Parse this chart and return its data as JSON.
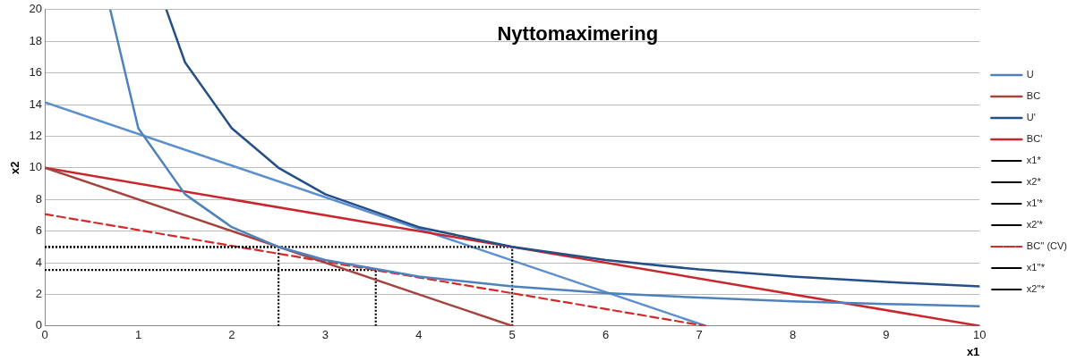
{
  "chart_data": {
    "type": "line",
    "title": "Nyttomaximering",
    "xlabel": "x1",
    "ylabel": "x2",
    "xlim": [
      0,
      10
    ],
    "xticks": [
      0,
      1,
      2,
      3,
      4,
      5,
      6,
      7,
      8,
      9,
      10
    ],
    "ylim": [
      0,
      20
    ],
    "yticks": [
      0,
      2,
      4,
      6,
      8,
      10,
      12,
      14,
      16,
      18,
      20
    ],
    "grid": "y",
    "legend": "right",
    "marker": "none",
    "series": [
      {
        "name": "U",
        "color": "#4f81bd",
        "line_style": "solid",
        "x": [
          0.7,
          1,
          1.5,
          2,
          2.5,
          3,
          4,
          5,
          6,
          7,
          8,
          9,
          10
        ],
        "values": [
          20,
          12.5,
          8.33,
          6.25,
          5,
          4.17,
          3.13,
          2.5,
          2.08,
          1.79,
          1.56,
          1.39,
          1.25
        ]
      },
      {
        "name": "BC",
        "color": "#a5443f",
        "line_style": "solid",
        "x": [
          0,
          5
        ],
        "values": [
          10,
          0
        ]
      },
      {
        "name": "U'",
        "color": "#254f87",
        "line_style": "solid",
        "x": [
          1.3,
          1.5,
          2,
          2.5,
          3,
          4,
          5,
          6,
          7,
          8,
          9,
          10
        ],
        "values": [
          20,
          16.67,
          12.5,
          10,
          8.33,
          6.25,
          5,
          4.17,
          3.57,
          3.13,
          2.78,
          2.5
        ]
      },
      {
        "name": "BC'",
        "color": "#c8282d",
        "line_style": "solid",
        "x": [
          0,
          10
        ],
        "values": [
          10,
          0
        ]
      },
      {
        "name": "x1*",
        "color": "#000000",
        "line_style": "dotted",
        "x": [
          2.5,
          2.5
        ],
        "values": [
          0,
          5
        ]
      },
      {
        "name": "x2*",
        "color": "#000000",
        "line_style": "dotted",
        "x": [
          0,
          2.5
        ],
        "values": [
          5,
          5
        ]
      },
      {
        "name": "x1'*",
        "color": "#000000",
        "line_style": "dotted",
        "x": [
          5,
          5
        ],
        "values": [
          0,
          5
        ]
      },
      {
        "name": "x2'*",
        "color": "#000000",
        "line_style": "dotted",
        "x": [
          0,
          5
        ],
        "values": [
          5,
          5
        ]
      },
      {
        "name": "BC'' (CV)",
        "color": "#d42a2a",
        "line_style": "dashed",
        "x": [
          0,
          7.07
        ],
        "values": [
          7.07,
          0
        ]
      },
      {
        "name": "x1''*",
        "color": "#000000",
        "line_style": "dotted",
        "x": [
          3.54,
          3.54
        ],
        "values": [
          0,
          3.54
        ]
      },
      {
        "name": "x2''*",
        "color": "#000000",
        "line_style": "dotted",
        "x": [
          0,
          3.54
        ],
        "values": [
          3.54,
          3.54
        ]
      },
      {
        "color": "#5b8fd0",
        "line_style": "solid",
        "x": [
          0,
          7.07
        ],
        "values": [
          14.14,
          0
        ]
      }
    ]
  }
}
